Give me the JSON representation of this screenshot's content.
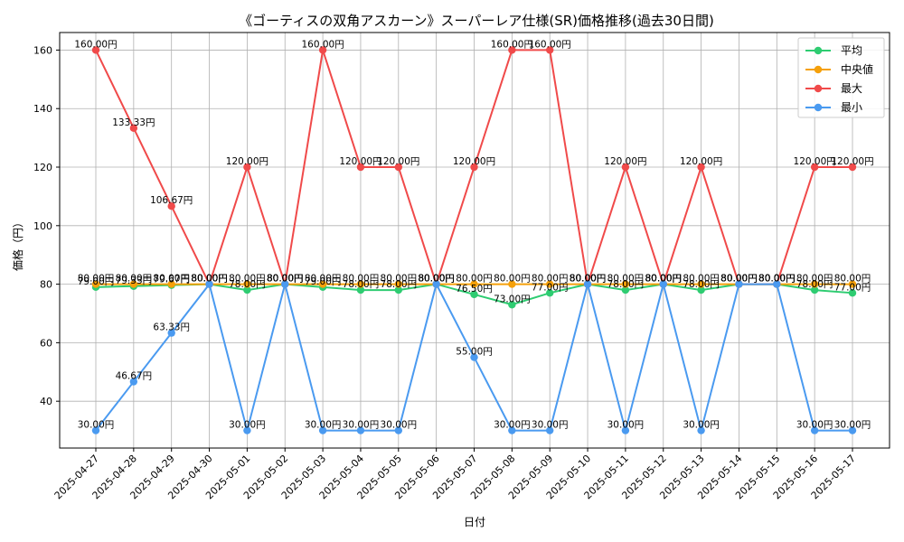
{
  "chart_data": {
    "type": "line",
    "title": "《ゴーティスの双角アスカーン》スーパーレア仕様(SR)価格推移(過去30日間)",
    "xlabel": "日付",
    "ylabel": "価格（円）",
    "categories": [
      "2025-04-27",
      "2025-04-28",
      "2025-04-29",
      "2025-04-30",
      "2025-05-01",
      "2025-05-02",
      "2025-05-03",
      "2025-05-04",
      "2025-05-05",
      "2025-05-06",
      "2025-05-07",
      "2025-05-08",
      "2025-05-09",
      "2025-05-10",
      "2025-05-11",
      "2025-05-12",
      "2025-05-13",
      "2025-05-14",
      "2025-05-15",
      "2025-05-16",
      "2025-05-17"
    ],
    "ylim": [
      24,
      166
    ],
    "yticks": [
      40,
      60,
      80,
      100,
      120,
      140,
      160
    ],
    "grid": true,
    "legend_position": "top-right",
    "value_suffix": "円",
    "series": [
      {
        "name": "平均",
        "color": "#2ecc71",
        "values": [
          79.0,
          79.33,
          79.67,
          80.0,
          78.0,
          80.0,
          79.0,
          78.0,
          78.0,
          80.0,
          76.5,
          73.0,
          77.0,
          80.0,
          78.0,
          80.0,
          78.0,
          80.0,
          80.0,
          78.0,
          77.0
        ]
      },
      {
        "name": "中央値",
        "color": "#f5a00a",
        "values": [
          80.0,
          80.0,
          80.0,
          80.0,
          80.0,
          80.0,
          80.0,
          80.0,
          80.0,
          80.0,
          80.0,
          80.0,
          80.0,
          80.0,
          80.0,
          80.0,
          80.0,
          80.0,
          80.0,
          80.0,
          80.0
        ]
      },
      {
        "name": "最大",
        "color": "#f04a4a",
        "values": [
          160.0,
          133.33,
          106.67,
          80.0,
          120.0,
          80.0,
          160.0,
          120.0,
          120.0,
          80.0,
          120.0,
          160.0,
          160.0,
          80.0,
          120.0,
          80.0,
          120.0,
          80.0,
          80.0,
          120.0,
          120.0
        ]
      },
      {
        "name": "最小",
        "color": "#4a9af0",
        "values": [
          30.0,
          46.67,
          63.33,
          80.0,
          30.0,
          80.0,
          30.0,
          30.0,
          30.0,
          80.0,
          55.0,
          30.0,
          30.0,
          80.0,
          30.0,
          80.0,
          30.0,
          80.0,
          80.0,
          30.0,
          30.0
        ]
      }
    ]
  }
}
